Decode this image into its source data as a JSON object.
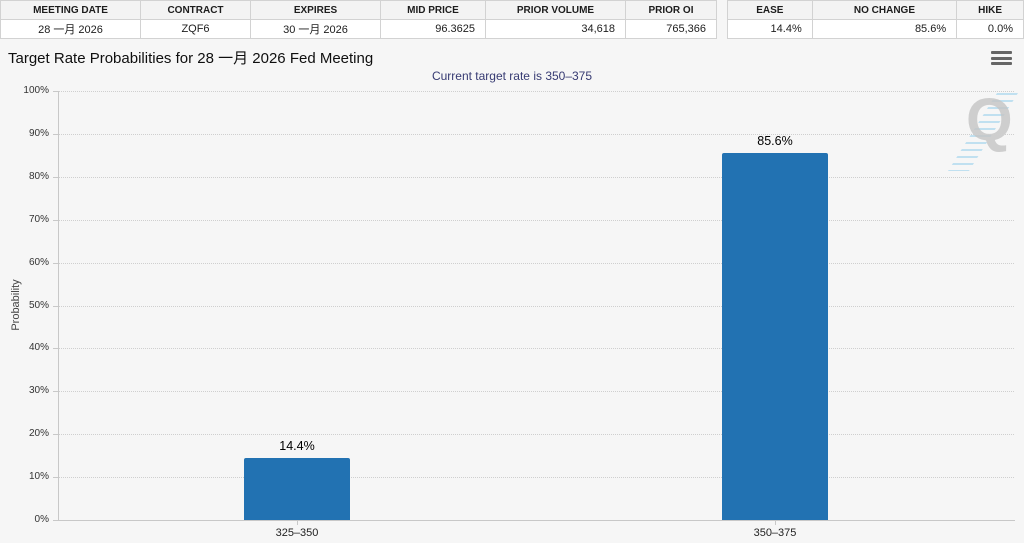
{
  "contract_table": {
    "headers": [
      "MEETING DATE",
      "CONTRACT",
      "EXPIRES",
      "MID PRICE",
      "PRIOR VOLUME",
      "PRIOR OI"
    ],
    "row": [
      "28 一月 2026",
      "ZQF6",
      "30 一月 2026",
      "96.3625",
      "34,618",
      "765,366"
    ]
  },
  "action_table": {
    "headers": [
      "EASE",
      "NO CHANGE",
      "HIKE"
    ],
    "row": [
      "14.4%",
      "85.6%",
      "0.0%"
    ]
  },
  "chart_data": {
    "type": "bar",
    "title": "Target Rate Probabilities for 28 一月 2026 Fed Meeting",
    "subtitle": "Current target rate is 350–375",
    "categories": [
      "325–350",
      "350–375"
    ],
    "values": [
      14.4,
      85.6
    ],
    "data_labels": [
      "14.4%",
      "85.6%"
    ],
    "xlabel": "",
    "ylabel": "Probability",
    "ylim": [
      0,
      100
    ],
    "ytick_step": 10,
    "ytick_suffix": "%",
    "grid": "horizontal-dotted",
    "legend": "none",
    "bar_color": "#2272b2"
  },
  "icons": {
    "context_menu": "hamburger-menu-icon",
    "watermark": "quikstrike-q-watermark"
  },
  "colors": {
    "bar": "#2272b2",
    "subtitle_text": "#363a72",
    "table_header_bg": "#f3f3f3",
    "grid": "#cccccc",
    "background": "#f6f6f6"
  },
  "watermark_letter": "Q"
}
